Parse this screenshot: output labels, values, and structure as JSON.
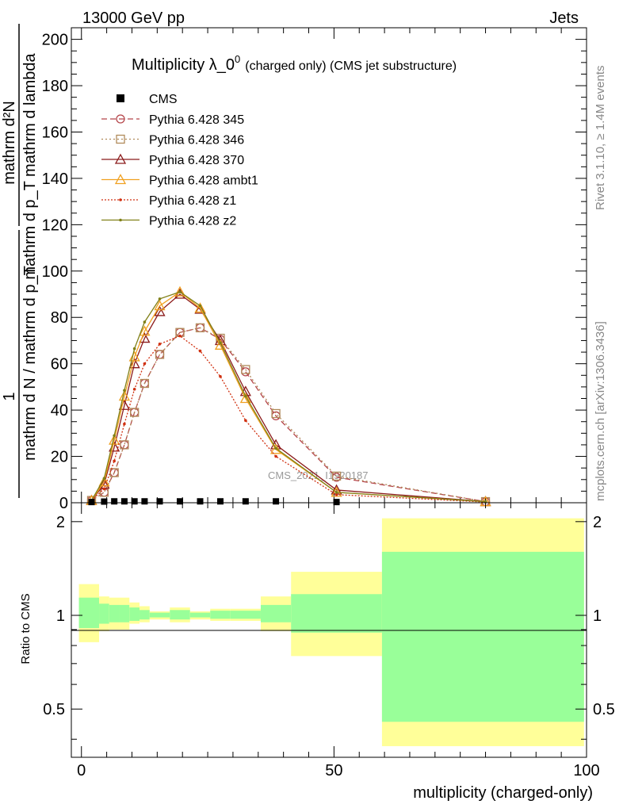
{
  "header": {
    "left": "13000 GeV pp",
    "right": "Jets"
  },
  "side_text": {
    "rivet": "Rivet 3.1.10, ≥ 1.4M events",
    "site": "mcplots.cern.ch [arXiv:1306.3436]"
  },
  "watermark": "CMS_2021_I1920187",
  "chart_data": [
    {
      "type": "line",
      "title_main": "Multiplicity λ_0",
      "title_sup": "0",
      "title_small": "(charged only) (CMS jet substructure)",
      "ylabel_top": "mathrm d²N",
      "ylabel_den": "mathrm d p_T mathrm d lambda",
      "ylabel_lhs": "1",
      "ylabel_lhs_den": "mathrm d N / mathrm d p_T",
      "xlim": [
        -2,
        100
      ],
      "ylim": [
        0,
        205
      ],
      "y_ticks": [
        0,
        20,
        40,
        60,
        80,
        100,
        120,
        140,
        160,
        180,
        200
      ],
      "grid": false,
      "legend_position": "top-left",
      "data_x": [
        2,
        4.5,
        6.5,
        8.5,
        10.5,
        12.5,
        15.5,
        19.5,
        23.5,
        27.5,
        32.5,
        38.5,
        50.5,
        80
      ],
      "cms": [
        0.3,
        0.5,
        0.6,
        0.6,
        0.6,
        0.6,
        0.6,
        0.6,
        0.6,
        0.6,
        0.6,
        0.6,
        0.3,
        0.0
      ],
      "series": [
        {
          "name": "Pythia 6.428 345",
          "color": "#b5454a",
          "dash": "7,4",
          "marker": "circle",
          "values": [
            1,
            4.5,
            13,
            25,
            39,
            51.5,
            64,
            73.5,
            75.5,
            70.5,
            56.5,
            37.5,
            11,
            0.5
          ]
        },
        {
          "name": "Pythia 6.428 346",
          "color": "#b08a5a",
          "dash": "2,3",
          "marker": "square",
          "values": [
            1,
            4.5,
            13,
            25,
            39,
            51.5,
            64,
            73.5,
            75.5,
            71,
            57.5,
            38.5,
            11.5,
            0.5
          ]
        },
        {
          "name": "Pythia 6.428 370",
          "color": "#8b1a1a",
          "dash": "",
          "marker": "triangle",
          "values": [
            1,
            8,
            24,
            42,
            60,
            71,
            82.5,
            90,
            83.5,
            70,
            48,
            25,
            5.5,
            0.5
          ]
        },
        {
          "name": "Pythia 6.428 ambt1",
          "color": "#f0a020",
          "dash": "",
          "marker": "triangle",
          "values": [
            1,
            9,
            27,
            46,
            63,
            74,
            85,
            91,
            84,
            68,
            45,
            23,
            4.5,
            0.5
          ]
        },
        {
          "name": "Pythia 6.428 z1",
          "color": "#d03010",
          "dash": "2,2",
          "marker": "dot",
          "values": [
            1,
            6,
            18,
            34,
            49,
            60,
            68.5,
            72,
            65.5,
            54.5,
            35.5,
            20,
            3.5,
            0.3
          ]
        },
        {
          "name": "Pythia 6.428 z2",
          "color": "#808018",
          "dash": "",
          "marker": "dot",
          "values": [
            1,
            10.5,
            29,
            48.5,
            66.5,
            78,
            88,
            91,
            85,
            69,
            46,
            23.5,
            4.5,
            0.5
          ]
        }
      ]
    },
    {
      "type": "area",
      "ylabel": "Ratio to CMS",
      "xlabel": "multiplicity (charged-only)",
      "xlim": [
        -2,
        100
      ],
      "ylim": [
        0.35,
        2.3
      ],
      "y_scale": "log",
      "y_ticks": [
        0.5,
        1,
        2
      ],
      "x_ticks": [
        0,
        50,
        100
      ],
      "bins": [
        {
          "x": [
            -0.5,
            3.5
          ],
          "stat": [
            0.91,
            1.14
          ],
          "total": [
            0.82,
            1.26
          ]
        },
        {
          "x": [
            3.5,
            5.5
          ],
          "stat": [
            0.94,
            1.09
          ],
          "total": [
            0.89,
            1.15
          ]
        },
        {
          "x": [
            5.5,
            7.5
          ],
          "stat": [
            0.95,
            1.08
          ],
          "total": [
            0.9,
            1.14
          ]
        },
        {
          "x": [
            7.5,
            9.5
          ],
          "stat": [
            0.95,
            1.08
          ],
          "total": [
            0.9,
            1.14
          ]
        },
        {
          "x": [
            9.5,
            11.5
          ],
          "stat": [
            0.96,
            1.06
          ],
          "total": [
            0.94,
            1.1
          ]
        },
        {
          "x": [
            11.5,
            13.5
          ],
          "stat": [
            0.97,
            1.04
          ],
          "total": [
            0.95,
            1.07
          ]
        },
        {
          "x": [
            13.5,
            17.5
          ],
          "stat": [
            0.985,
            1.02
          ],
          "total": [
            0.97,
            1.03
          ]
        },
        {
          "x": [
            17.5,
            21.5
          ],
          "stat": [
            0.97,
            1.04
          ],
          "total": [
            0.95,
            1.06
          ]
        },
        {
          "x": [
            21.5,
            25.5
          ],
          "stat": [
            0.985,
            1.02
          ],
          "total": [
            0.97,
            1.03
          ]
        },
        {
          "x": [
            25.5,
            29.5
          ],
          "stat": [
            0.975,
            1.035
          ],
          "total": [
            0.96,
            1.05
          ]
        },
        {
          "x": [
            29.5,
            35.5
          ],
          "stat": [
            0.975,
            1.035
          ],
          "total": [
            0.96,
            1.05
          ]
        },
        {
          "x": [
            35.5,
            41.5
          ],
          "stat": [
            0.95,
            1.08
          ],
          "total": [
            0.89,
            1.15
          ]
        },
        {
          "x": [
            41.5,
            59.5
          ],
          "stat": [
            0.88,
            1.17
          ],
          "total": [
            0.74,
            1.38
          ]
        },
        {
          "x": [
            59.5,
            99.5
          ],
          "stat": [
            0.455,
            1.6
          ],
          "total": [
            0.38,
            2.05
          ]
        }
      ]
    }
  ]
}
